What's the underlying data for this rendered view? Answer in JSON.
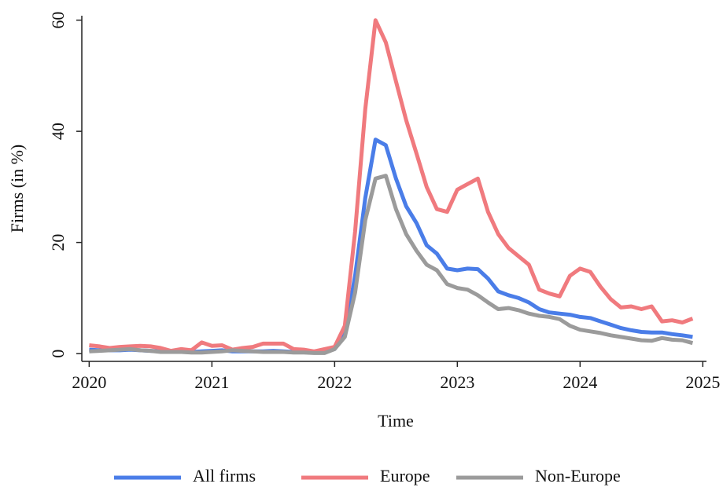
{
  "chart_data": {
    "type": "line",
    "x_label": "Time",
    "y_label": "Firms (in %)",
    "x": [
      2020,
      2020.083,
      2020.167,
      2020.25,
      2020.333,
      2020.417,
      2020.5,
      2020.583,
      2020.667,
      2020.75,
      2020.833,
      2020.917,
      2021,
      2021.083,
      2021.167,
      2021.25,
      2021.333,
      2021.417,
      2021.5,
      2021.583,
      2021.667,
      2021.75,
      2021.833,
      2021.917,
      2022,
      2022.083,
      2022.167,
      2022.25,
      2022.333,
      2022.417,
      2022.5,
      2022.583,
      2022.667,
      2022.75,
      2022.833,
      2022.917,
      2023,
      2023.083,
      2023.167,
      2023.25,
      2023.333,
      2023.417,
      2023.5,
      2023.583,
      2023.667,
      2023.75,
      2023.833,
      2023.917,
      2024,
      2024.083,
      2024.167,
      2024.25,
      2024.333,
      2024.417,
      2024.5,
      2024.583,
      2024.667,
      2024.75,
      2024.833,
      2024.917
    ],
    "series": [
      {
        "name": "All firms",
        "color": "#4a7de8",
        "values": [
          0.7,
          0.6,
          0.6,
          0.6,
          0.7,
          0.6,
          0.5,
          0.4,
          0.3,
          0.4,
          0.3,
          0.4,
          0.5,
          0.6,
          0.4,
          0.4,
          0.4,
          0.4,
          0.5,
          0.4,
          0.3,
          0.3,
          0.2,
          0.3,
          0.8,
          3.5,
          14,
          28,
          38.5,
          37.5,
          31.5,
          26.5,
          23.5,
          19.5,
          18,
          15.3,
          15,
          15.3,
          15.2,
          13.5,
          11.2,
          10.5,
          10,
          9.2,
          8,
          7.4,
          7.2,
          7,
          6.6,
          6.4,
          5.8,
          5.2,
          4.6,
          4.2,
          3.9,
          3.8,
          3.8,
          3.5,
          3.3,
          3.0
        ]
      },
      {
        "name": "Europe",
        "color": "#f07a7e",
        "values": [
          1.5,
          1.3,
          1.0,
          1.2,
          1.3,
          1.4,
          1.3,
          1.0,
          0.5,
          0.8,
          0.6,
          2.0,
          1.4,
          1.5,
          0.7,
          1.0,
          1.2,
          1.8,
          1.8,
          1.8,
          0.8,
          0.7,
          0.4,
          0.8,
          1.2,
          5,
          22,
          44,
          60,
          56,
          49,
          42,
          36,
          30,
          26,
          25.5,
          29.5,
          30.5,
          31.5,
          25.5,
          21.5,
          19,
          17.5,
          16,
          11.5,
          10.8,
          10.3,
          14,
          15.3,
          14.7,
          12,
          9.8,
          8.3,
          8.5,
          8,
          8.5,
          5.8,
          6,
          5.6,
          6.3
        ]
      },
      {
        "name": "Non-Europe",
        "color": "#9b9b9b",
        "values": [
          0.4,
          0.5,
          0.6,
          0.7,
          0.8,
          0.6,
          0.5,
          0.3,
          0.3,
          0.3,
          0.2,
          0.2,
          0.3,
          0.4,
          0.6,
          0.5,
          0.4,
          0.3,
          0.3,
          0.3,
          0.2,
          0.2,
          0.1,
          0.1,
          0.8,
          3,
          11,
          24,
          31.5,
          32,
          26,
          21.5,
          18.5,
          16,
          15,
          12.5,
          11.8,
          11.5,
          10.5,
          9.2,
          8,
          8.2,
          7.8,
          7.2,
          6.8,
          6.6,
          6.2,
          5,
          4.3,
          4,
          3.7,
          3.3,
          3,
          2.7,
          2.4,
          2.3,
          2.8,
          2.5,
          2.4,
          1.9
        ]
      }
    ],
    "xlim": [
      2019.94,
      2025.03
    ],
    "xticks": [
      2020,
      2021,
      2022,
      2023,
      2024,
      2025
    ],
    "ylim": [
      -1.4,
      60.8
    ],
    "yticks": [
      0,
      20,
      40,
      60
    ],
    "grid": false
  }
}
